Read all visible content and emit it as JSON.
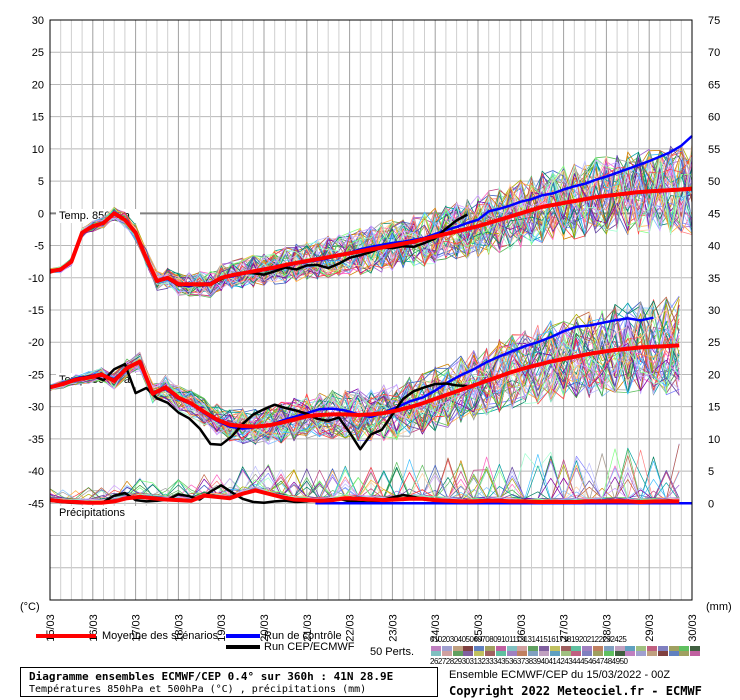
{
  "chart_data": {
    "type": "line",
    "title": "Diagramme ensembles ECMWF/CEP 0.4° sur 360h : 41N 28.9E",
    "subtitle": "Températures 850hPa et 500hPa (°C) , précipitations (mm)",
    "left_axis": {
      "unit": "(°C)",
      "ylim": [
        -60,
        30
      ],
      "ticks": [
        "30",
        "25",
        "20",
        "15",
        "10",
        "5",
        "0",
        "-5",
        "-10",
        "-15",
        "-20",
        "-25",
        "-30",
        "-35",
        "-40",
        "-45"
      ]
    },
    "right_axis": {
      "unit": "(mm)",
      "ylim": [
        -15,
        75
      ],
      "ticks": [
        "75",
        "70",
        "65",
        "60",
        "55",
        "50",
        "45",
        "40",
        "35",
        "30",
        "25",
        "20",
        "15",
        "10",
        "5",
        "0"
      ]
    },
    "x_labels": [
      "15/03",
      "16/03",
      "17/03",
      "18/03",
      "19/03",
      "20/03",
      "21/03",
      "22/03",
      "23/03",
      "24/03",
      "25/03",
      "26/03",
      "27/03",
      "28/03",
      "29/03",
      "30/03"
    ],
    "panel_labels": {
      "t850": "Temp. 850hPa",
      "t500": "Temp. 500hPa",
      "precip": "Précipitations"
    },
    "grid": true,
    "mean_t850": [
      -9,
      -8.7,
      -7.5,
      -3,
      -2,
      -1.5,
      0,
      -1,
      -3,
      -7,
      -10.5,
      -10,
      -11,
      -11,
      -11,
      -11,
      -10,
      -9.6,
      -9.3,
      -9,
      -8.7,
      -8.4,
      -8,
      -7.7,
      -7.4,
      -7.1,
      -6.8,
      -6.5,
      -6.2,
      -5.9,
      -5.6,
      -5.3,
      -5,
      -4.7,
      -4.4,
      -4,
      -3.6,
      -3.2,
      -2.8,
      -2.4,
      -2,
      -1.5,
      -1,
      -0.5,
      0,
      0.5,
      1,
      1.3,
      1.6,
      1.9,
      2.2,
      2.5,
      2.7,
      2.9,
      3.1,
      3.3,
      3.4,
      3.5,
      3.6,
      3.7,
      3.8
    ],
    "control_t850": [
      -9,
      -8.8,
      -7.4,
      -3,
      -2.1,
      -1.4,
      0.1,
      -1.1,
      -3.2,
      -7.2,
      -10.4,
      -10.2,
      -11.1,
      -11.3,
      -11,
      -10.8,
      -10,
      -9.8,
      -9.4,
      -9.1,
      -8.8,
      -8.6,
      -8.2,
      -7.8,
      -7.5,
      -7.3,
      -7,
      -6.5,
      -6.1,
      -5.6,
      -5.2,
      -4.9,
      -4.6,
      -4.4,
      -4.1,
      -3.8,
      -3.2,
      -2.6,
      -2.1,
      -1.5,
      -1,
      0.3,
      0.7,
      1.2,
      1.8,
      2.2,
      2.8,
      3.1,
      3.7,
      4.2,
      4.6,
      5.2,
      5.7,
      6.3,
      6.9,
      7.5,
      8.1,
      8.8,
      9.5,
      10.5,
      12
    ],
    "run_t850": [
      -9,
      -8.6,
      -7.6,
      -3.1,
      -2,
      -1.6,
      -0.1,
      -0.9,
      -2.9,
      -7.1,
      -10.6,
      -10.1,
      -11.2,
      -11.1,
      -11.2,
      -11.1,
      -10.2,
      -9.5,
      -9.2,
      -9.3,
      -9.5,
      -9,
      -8.4,
      -8.7,
      -8.1,
      -8,
      -8.5,
      -7.8,
      -6.9,
      -6.5,
      -6,
      -5.3,
      -5.4,
      -5.1,
      -5.2,
      -4.6,
      -3.9,
      -2.4,
      -1.1,
      -0.2
    ],
    "mean_t500": [
      -27,
      -26.5,
      -25.8,
      -25.5,
      -25,
      -26,
      -24,
      -23,
      -28,
      -27,
      -28.6,
      -29.5,
      -30.8,
      -32,
      -32.8,
      -33,
      -33.1,
      -32.9,
      -32.5,
      -32,
      -31.5,
      -31.3,
      -31.2,
      -31.2,
      -31.3,
      -31.2,
      -31,
      -30.6,
      -30.1,
      -29.5,
      -28.8,
      -28.1,
      -27.4,
      -26.7,
      -26,
      -25.3,
      -24.6,
      -24,
      -23.5,
      -23,
      -22.6,
      -22.2,
      -21.8,
      -21.5,
      -21.2,
      -21,
      -20.8,
      -20.7,
      -20.6,
      -20.5
    ],
    "control_t500": [
      -27,
      -26.4,
      -25.6,
      -25.3,
      -24.9,
      -25.8,
      -23.8,
      -23.2,
      -28.1,
      -27.2,
      -28.8,
      -29.6,
      -31,
      -32.2,
      -33.1,
      -33.4,
      -33.2,
      -33,
      -32.2,
      -31.6,
      -31,
      -30.4,
      -30.3,
      -30.6,
      -31.2,
      -31.6,
      -30.9,
      -30.1,
      -29.2,
      -28.6,
      -27.5,
      -26.2,
      -25.1,
      -24.2,
      -23.1,
      -22.2,
      -21.4,
      -20.6,
      -20,
      -19.2,
      -18.3,
      -17.6,
      -17.4,
      -17,
      -16.6,
      -16.3,
      -16.6,
      -16.2
    ],
    "run_t500": [
      -27,
      -26.6,
      -25.9,
      -25.5,
      -25.2,
      -25.9,
      -24.2,
      -23.4,
      -27.9,
      -27.1,
      -28.7,
      -29.4,
      -30.9,
      -31.8,
      -33.4,
      -35.8,
      -35.9,
      -34.6,
      -32.7,
      -31.2,
      -30.4,
      -29.7,
      -30.2,
      -30.6,
      -31.1,
      -31.9,
      -32.2,
      -31.7,
      -34,
      -36.6,
      -34.3,
      -33.6,
      -31.2,
      -28.8,
      -27.6,
      -27,
      -26.5,
      -26.4,
      -26.7,
      -26.8
    ],
    "mean_precip": [
      0.5,
      0.3,
      0.2,
      0.1,
      0.1,
      0.3,
      0.8,
      1,
      0.8,
      0.6,
      0.5,
      0.4,
      1.2,
      1,
      0.8,
      1.5,
      2,
      1.5,
      1,
      0.6,
      0.5,
      0.4,
      0.5,
      0.8,
      0.7,
      0.6,
      0.5,
      0.6,
      0.7,
      0.7,
      0.5,
      0.4,
      0.3,
      0.3,
      0.4,
      0.4,
      0.3,
      0.3,
      0.2,
      0.2,
      0.2,
      0.2,
      0.3,
      0.3,
      0.3,
      0.3,
      0.2,
      0.3,
      0.3,
      0.3
    ],
    "run_precip": [
      0.4,
      0.2,
      0.1,
      0,
      0,
      0.2,
      1.2,
      1.6,
      0.5,
      0.3,
      0.4,
      0.6,
      1.4,
      1.1,
      0.6,
      1.8,
      2.8,
      1.7,
      0.7,
      0.2,
      0.1,
      0.3,
      0.4,
      0.2,
      0.3,
      0.5,
      0.6,
      0.7,
      0.3,
      0.2,
      0.1,
      0.5,
      0.9,
      1.3,
      1,
      0.6,
      0.4,
      0.2,
      0.1,
      0.1
    ],
    "legend": [
      {
        "label": "Moyenne des scénarios",
        "color": "#ff0000"
      },
      {
        "label": "Run de contrôle",
        "color": "#0000ff"
      },
      {
        "label": "Run CEP/ECMWF",
        "color": "#000000"
      }
    ],
    "perturbations_label": "50 Perts.",
    "member_numbers_row1": "01020304050607080910111213141516171819202122232425",
    "member_numbers_row2": "26272829303132333435363738394041424344454647484950",
    "source_line": "Ensemble ECMWF/CEP du 15/03/2022 - 00Z",
    "copyright": "Copyright 2022 Meteociel.fr - ECMWF"
  }
}
